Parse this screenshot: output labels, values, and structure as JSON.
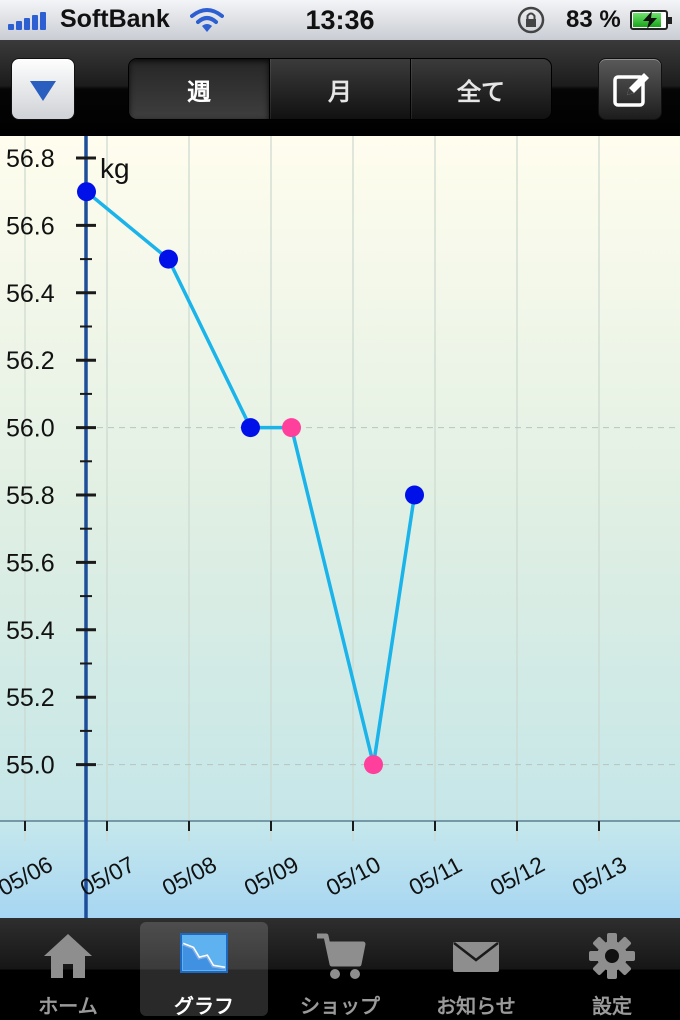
{
  "status_bar": {
    "carrier": "SoftBank",
    "time": "13:36",
    "battery_percent": "83 %"
  },
  "nav": {
    "segments": [
      {
        "label": "週",
        "active": true
      },
      {
        "label": "月",
        "active": false
      },
      {
        "label": "全て",
        "active": false
      }
    ],
    "menu_icon": "triangle-down-icon",
    "edit_icon": "edit-pencil-icon"
  },
  "chart_data": {
    "type": "line",
    "unit_label": "kg",
    "y_ticks": [
      "56.8",
      "56.6",
      "56.4",
      "56.2",
      "56.0",
      "55.8",
      "55.6",
      "55.4",
      "55.2",
      "55.0"
    ],
    "ylim": [
      54.84,
      56.87
    ],
    "x_ticks": [
      "05/06",
      "05/07",
      "05/08",
      "05/09",
      "05/10",
      "05/11",
      "05/12",
      "05/13"
    ],
    "series": [
      {
        "values": [
          {
            "x": 0.05,
            "y": 56.7,
            "color": "#0010e8"
          },
          {
            "x": 1.05,
            "y": 56.5,
            "color": "#0010e8"
          },
          {
            "x": 2.05,
            "y": 56.0,
            "color": "#0010e8"
          },
          {
            "x": 2.55,
            "y": 56.0,
            "color": "#ff3f9c"
          },
          {
            "x": 3.55,
            "y": 55.0,
            "color": "#ff3f9c"
          },
          {
            "x": 4.05,
            "y": 55.8,
            "color": "#0010e8"
          }
        ],
        "line_color": "#1ab4ea"
      }
    ],
    "dashed_reference_lines": [
      56.0,
      55.0
    ]
  },
  "tab_bar": {
    "tabs": [
      {
        "label": "ホーム",
        "icon": "home-icon",
        "active": false
      },
      {
        "label": "グラフ",
        "icon": "graph-icon",
        "active": true
      },
      {
        "label": "ショップ",
        "icon": "cart-icon",
        "active": false
      },
      {
        "label": "お知らせ",
        "icon": "mail-icon",
        "active": false
      },
      {
        "label": "設定",
        "icon": "gear-icon",
        "active": false
      }
    ]
  }
}
